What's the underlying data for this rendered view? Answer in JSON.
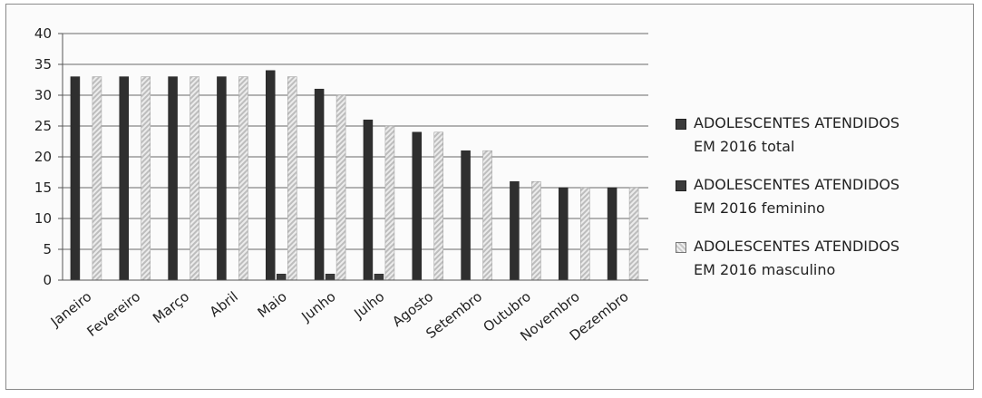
{
  "chart_data": {
    "type": "bar",
    "categories": [
      "Janeiro",
      "Fevereiro",
      "Março",
      "Abril",
      "Maio",
      "Junho",
      "Julho",
      "Agosto",
      "Setembro",
      "Outubro",
      "Novembro",
      "Dezembro"
    ],
    "series": [
      {
        "name": "ADOLESCENTES ATENDIDOS EM 2016 total",
        "values": [
          33,
          33,
          33,
          33,
          34,
          31,
          26,
          24,
          21,
          16,
          15,
          15
        ],
        "color": "#2f2f2f"
      },
      {
        "name": "ADOLESCENTES ATENDIDOS EM 2016 feminino",
        "values": [
          0,
          0,
          0,
          0,
          1,
          1,
          1,
          0,
          0,
          0,
          0,
          0
        ],
        "color": "#3a3a3a"
      },
      {
        "name": "ADOLESCENTES ATENDIDOS EM 2016 masculino",
        "values": [
          33,
          33,
          33,
          33,
          33,
          30,
          25,
          24,
          21,
          16,
          15,
          15
        ],
        "color": "#c8c8c8"
      }
    ],
    "ylim": [
      0,
      40
    ],
    "yticks": [
      0,
      5,
      10,
      15,
      20,
      25,
      30,
      35,
      40
    ],
    "grid": true,
    "legend_position": "right",
    "title": "",
    "xlabel": "",
    "ylabel": ""
  },
  "legend": {
    "items": [
      {
        "line1": "ADOLESCENTES ATENDIDOS",
        "line2": "EM 2016 total"
      },
      {
        "line1": "ADOLESCENTES ATENDIDOS",
        "line2": "EM 2016 feminino"
      },
      {
        "line1": "ADOLESCENTES ATENDIDOS",
        "line2": "EM 2016 masculino"
      }
    ]
  }
}
